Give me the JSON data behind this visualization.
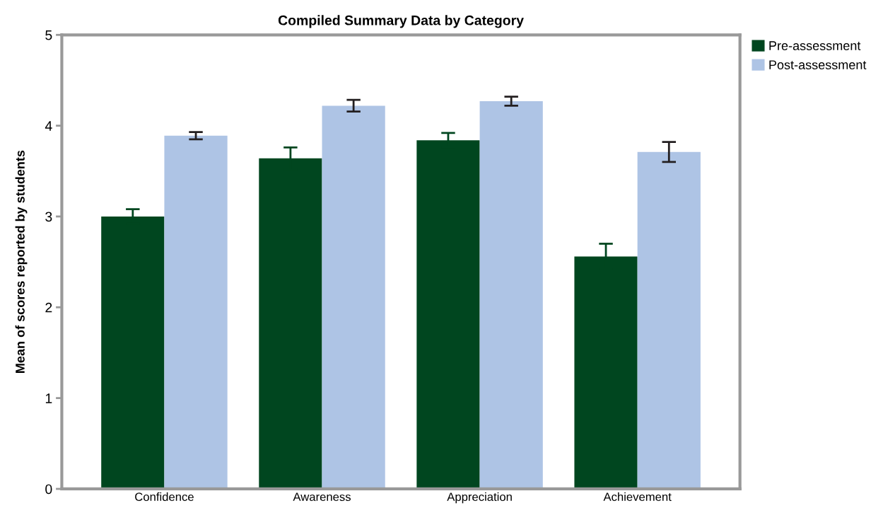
{
  "chart_data": {
    "type": "bar",
    "title": "Compiled Summary Data by Category",
    "ylabel": "Mean of scores reported by students",
    "categories": [
      "Confidence",
      "Awareness",
      "Appreciation",
      "Achievement"
    ],
    "series": [
      {
        "name": "Pre-assessment",
        "color": "#00461f",
        "values": [
          3.0,
          3.64,
          3.84,
          2.56
        ],
        "errors": [
          0.08,
          0.12,
          0.08,
          0.14
        ]
      },
      {
        "name": "Post-assessment",
        "color": "#aec4e5",
        "values": [
          3.89,
          4.22,
          4.27,
          3.71
        ],
        "errors": [
          0.04,
          0.065,
          0.05,
          0.11
        ]
      }
    ],
    "ylim": [
      0,
      5
    ],
    "yticks": [
      0,
      1,
      2,
      3,
      4,
      5
    ],
    "grid": false,
    "legend": "top right"
  }
}
